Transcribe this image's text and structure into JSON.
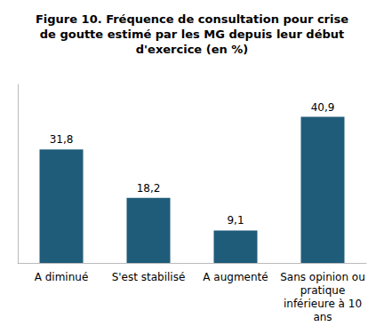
{
  "chart_data": {
    "type": "bar",
    "title": "Figure 10. Fréquence de consultation pour crise\nde goutte estimé par les MG depuis leur début\nd'exercice (en %)",
    "categories": [
      "A diminué",
      "S'est stabilisé",
      "A augmenté",
      "Sans opinion ou\npratique\ninférieure à 10\nans"
    ],
    "values": [
      31.8,
      18.2,
      9.1,
      40.9
    ],
    "value_labels": [
      "31,8",
      "18,2",
      "9,1",
      "40,9"
    ],
    "color": "#1F5C7A",
    "ylim": [
      0,
      50
    ],
    "grid": false,
    "data_labels": true,
    "tick_labels": "x"
  }
}
